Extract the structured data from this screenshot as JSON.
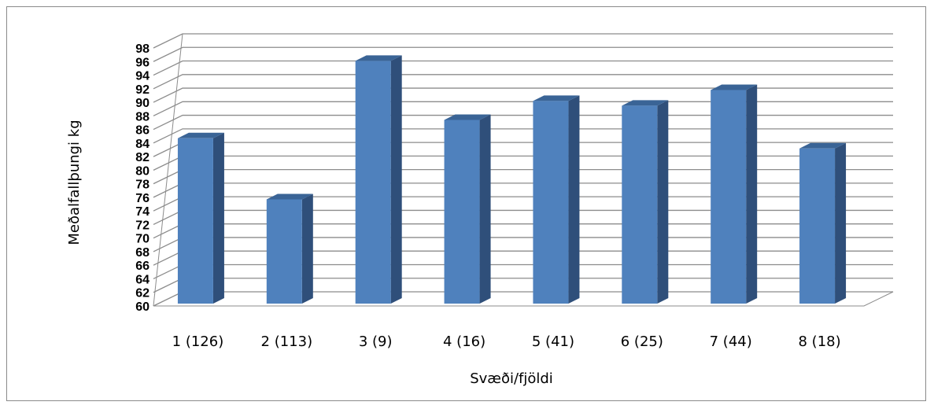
{
  "chart_data": {
    "type": "bar",
    "style": "3d-column",
    "categories": [
      "1 (126)",
      "2 (113)",
      "3 (9)",
      "4 (16)",
      "5 (41)",
      "6 (25)",
      "7 (44)",
      "8 (18)"
    ],
    "values": [
      84.7,
      75.7,
      96.1,
      87.4,
      90.2,
      89.5,
      91.8,
      83.2
    ],
    "ylabel": "Meðalfallþungi kg",
    "xlabel": "Svæði/fjöldi",
    "ylim": [
      60,
      98
    ],
    "ytick_step": 2,
    "grid": true,
    "legend": "none",
    "colors": {
      "bar_front": "#4f81bd",
      "bar_side": "#2f4f7a",
      "bar_top": "#3a6496",
      "grid": "#8c8c8c"
    }
  }
}
